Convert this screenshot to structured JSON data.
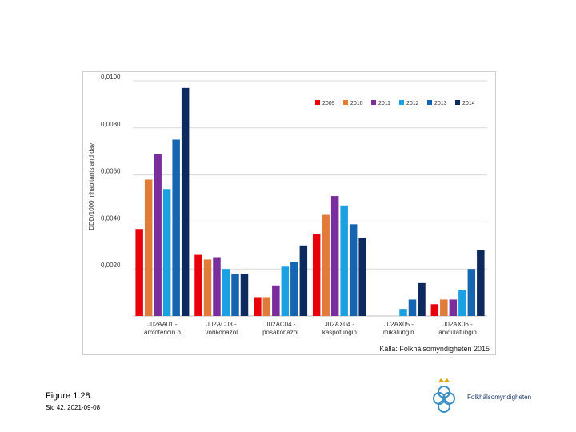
{
  "chart_data": {
    "type": "bar",
    "title": "",
    "ylabel": "DDD/1000 inhabitants and day",
    "xlabel": "",
    "ylim": [
      0,
      0.01
    ],
    "yticks": [
      0.002,
      0.004,
      0.006,
      0.008,
      0.01
    ],
    "ytick_labels": [
      "0,0020",
      "0,0040",
      "0,0060",
      "0,0080",
      "0,0100"
    ],
    "categories": [
      [
        "J02AA01 -",
        "amfotericin b"
      ],
      [
        "J02AC03 -",
        "vorikonazol"
      ],
      [
        "J02AC04 -",
        "posakonazol"
      ],
      [
        "J02AX04 -",
        "kaspofungin"
      ],
      [
        "J02AX05 -",
        "mikafungin"
      ],
      [
        "J02AX06 -",
        "anidulafungin"
      ]
    ],
    "series": [
      {
        "name": "2009",
        "color": "#e8000b",
        "values": [
          0.0037,
          0.0026,
          0.0008,
          0.0035,
          null,
          0.0005
        ]
      },
      {
        "name": "2010",
        "color": "#e07b39",
        "values": [
          0.0058,
          0.0024,
          0.0008,
          0.0043,
          null,
          0.0007
        ]
      },
      {
        "name": "2011",
        "color": "#7a2d9c",
        "values": [
          0.0069,
          0.0025,
          0.0013,
          0.0051,
          null,
          0.0007
        ]
      },
      {
        "name": "2012",
        "color": "#1ba1e2",
        "values": [
          0.0054,
          0.002,
          0.0021,
          0.0047,
          0.0003,
          0.0011
        ]
      },
      {
        "name": "2013",
        "color": "#1565b0",
        "values": [
          0.0075,
          0.0018,
          0.0023,
          0.0039,
          0.0007,
          0.002
        ]
      },
      {
        "name": "2014",
        "color": "#0d2a5e",
        "values": [
          0.0097,
          0.0018,
          0.003,
          0.0033,
          0.0014,
          0.0028
        ]
      }
    ],
    "legend_position": "top-right",
    "source_note": "Källa: Folkhälsomyndigheten 2015"
  },
  "caption": {
    "figure": "Figure 1.28.",
    "page": "Sid 42, 2021-09-08"
  },
  "logo": {
    "text": "Folkhälsomyndigheten"
  }
}
